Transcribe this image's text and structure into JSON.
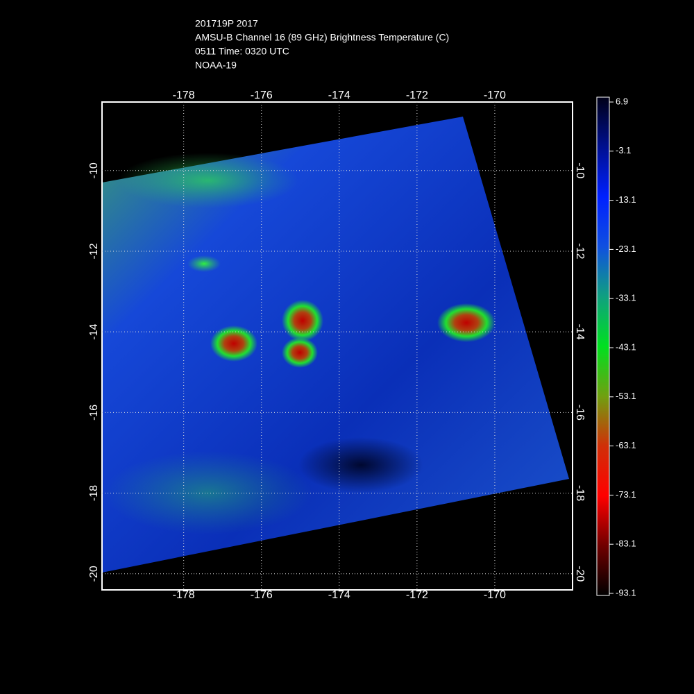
{
  "title": [
    "201719P 2017",
    "AMSU-B Channel 16 (89 GHz) Brightness Temperature (C)",
    "0511 Time: 0320 UTC",
    "NOAA-19"
  ],
  "map": {
    "xlim": [
      -180.1,
      -168
    ],
    "ylim": [
      -20.4,
      -8.3
    ],
    "xticks": [
      -178,
      -176,
      -174,
      -172,
      -170
    ],
    "yticks": [
      -10,
      -12,
      -14,
      -16,
      -18,
      -20
    ]
  },
  "colorbar": {
    "lim": [
      -93.1,
      6.9
    ],
    "ticks": [
      6.9,
      -3.1,
      -13.1,
      -23.1,
      -33.1,
      -43.1,
      -53.1,
      -63.1,
      -73.1,
      -83.1,
      -93.1
    ]
  }
}
